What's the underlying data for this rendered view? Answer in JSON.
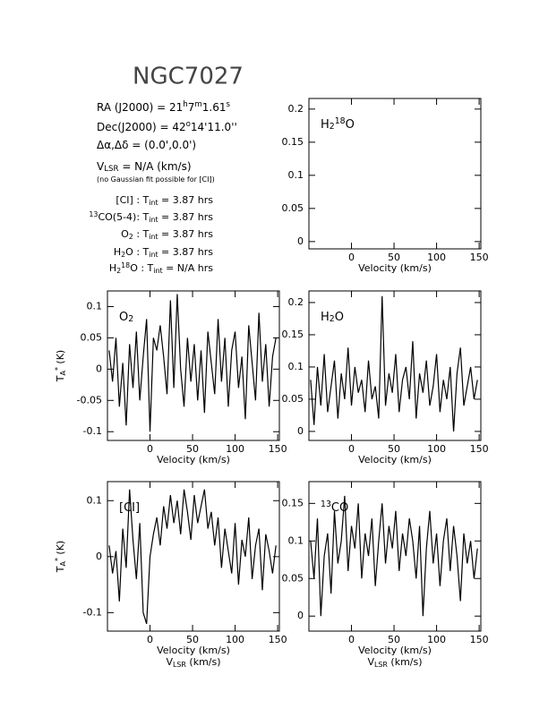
{
  "header": {
    "title": "NGC7027",
    "info": [
      [
        "RA (J2000) = 21",
        {
          "text": "h",
          "pos": "sup"
        },
        "7",
        {
          "text": "m",
          "pos": "sup"
        },
        "1.61",
        {
          "text": "s",
          "pos": "sup"
        }
      ],
      [
        "Dec(J2000) = 42",
        {
          "text": "o",
          "pos": "sup"
        },
        "14'11.0''"
      ],
      [
        "Δα,Δδ = (0.0',0.0')"
      ],
      [
        "V",
        {
          "text": "LSR",
          "pos": "sub"
        },
        " = N/A (km/s)"
      ],
      [
        "(no Gaussian fit possible for [CI])"
      ],
      [
        "[CI] : T",
        {
          "text": "int",
          "pos": "sub"
        },
        " = 3.87 hrs"
      ],
      [
        {
          "text": "13",
          "pos": "sup"
        },
        "CO(5-4): T",
        {
          "text": "int",
          "pos": "sub"
        },
        " = 3.87 hrs"
      ],
      [
        "O",
        {
          "text": "2",
          "pos": "sub"
        },
        " : T",
        {
          "text": "int",
          "pos": "sub"
        },
        " = 3.87 hrs"
      ],
      [
        "H",
        {
          "text": "2",
          "pos": "sub"
        },
        "O : T",
        {
          "text": "int",
          "pos": "sub"
        },
        " = 3.87 hrs"
      ],
      [
        "H",
        {
          "text": "2",
          "pos": "sub"
        },
        {
          "text": "18",
          "pos": "sup"
        },
        "O : T",
        {
          "text": "int",
          "pos": "sub"
        },
        " = N/A hrs"
      ]
    ]
  },
  "chart_data": [
    {
      "type": "line",
      "label": [
        "H",
        {
          "text": "2",
          "pos": "sub"
        },
        {
          "text": "18",
          "pos": "sup"
        },
        "O"
      ],
      "xlabel": [
        [
          "Velocity (km/s)"
        ]
      ],
      "xlim": [
        -50,
        152
      ],
      "ylim": [
        -0.011,
        0.216
      ],
      "xticks": [
        0,
        50,
        100,
        150
      ],
      "yticks": [
        0,
        0.05,
        0.1,
        0.15,
        0.2
      ],
      "color": "#000000"
    },
    {
      "type": "line",
      "label": [
        "O",
        {
          "text": "2",
          "pos": "sub"
        }
      ],
      "xlabel": [
        [
          "Velocity (km/s)"
        ]
      ],
      "ylabel": [
        "T",
        {
          "text": "A",
          "pos": "sub"
        },
        {
          "text": "*",
          "pos": "sup"
        },
        " (K)"
      ],
      "xlim": [
        -50,
        152
      ],
      "ylim": [
        -0.114,
        0.125
      ],
      "xticks": [
        0,
        50,
        100,
        150
      ],
      "yticks": [
        -0.1,
        -0.05,
        0,
        0.05,
        0.1
      ],
      "color": "#000000",
      "x": [
        -48,
        -44,
        -40,
        -36,
        -32,
        -28,
        -24,
        -20,
        -16,
        -12,
        -8,
        -4,
        0,
        4,
        8,
        12,
        16,
        20,
        24,
        28,
        32,
        36,
        40,
        44,
        48,
        52,
        56,
        60,
        64,
        68,
        72,
        76,
        80,
        84,
        88,
        92,
        96,
        100,
        104,
        108,
        112,
        116,
        120,
        124,
        128,
        132,
        136,
        140,
        144,
        148
      ],
      "values": [
        0.03,
        -0.02,
        0.05,
        -0.06,
        0.01,
        -0.09,
        0.04,
        -0.03,
        0.06,
        -0.05,
        0.02,
        0.08,
        -0.1,
        0.05,
        0.03,
        0.07,
        0.02,
        -0.04,
        0.11,
        -0.03,
        0.12,
        0.0,
        -0.06,
        0.05,
        -0.02,
        0.04,
        -0.05,
        0.03,
        -0.07,
        0.06,
        0.01,
        -0.04,
        0.08,
        -0.02,
        0.05,
        -0.06,
        0.03,
        0.06,
        -0.03,
        0.02,
        -0.08,
        0.07,
        0.01,
        -0.05,
        0.09,
        -0.02,
        0.04,
        -0.06,
        0.02,
        0.05
      ]
    },
    {
      "type": "line",
      "label": [
        "H",
        {
          "text": "2",
          "pos": "sub"
        },
        "O"
      ],
      "xlabel": [
        [
          "Velocity (km/s)"
        ]
      ],
      "xlim": [
        -50,
        152
      ],
      "ylim": [
        -0.014,
        0.218
      ],
      "xticks": [
        0,
        50,
        100,
        150
      ],
      "yticks": [
        0,
        0.05,
        0.1,
        0.15,
        0.2
      ],
      "color": "#000000",
      "x": [
        -48,
        -44,
        -40,
        -36,
        -32,
        -28,
        -24,
        -20,
        -16,
        -12,
        -8,
        -4,
        0,
        4,
        8,
        12,
        16,
        20,
        24,
        28,
        32,
        36,
        40,
        44,
        48,
        52,
        56,
        60,
        64,
        68,
        72,
        76,
        80,
        84,
        88,
        92,
        96,
        100,
        104,
        108,
        112,
        116,
        120,
        124,
        128,
        132,
        136,
        140,
        144,
        148
      ],
      "values": [
        0.08,
        0.01,
        0.1,
        0.04,
        0.12,
        0.03,
        0.07,
        0.11,
        0.02,
        0.09,
        0.05,
        0.13,
        0.04,
        0.1,
        0.06,
        0.08,
        0.03,
        0.11,
        0.05,
        0.07,
        0.02,
        0.21,
        0.04,
        0.09,
        0.06,
        0.12,
        0.03,
        0.08,
        0.1,
        0.05,
        0.14,
        0.02,
        0.09,
        0.06,
        0.11,
        0.04,
        0.07,
        0.12,
        0.03,
        0.08,
        0.05,
        0.1,
        0.0,
        0.09,
        0.13,
        0.04,
        0.07,
        0.1,
        0.05,
        0.08
      ]
    },
    {
      "type": "line",
      "label": [
        "[CI]"
      ],
      "xlabel": [
        [
          "Velocity (km/s)"
        ],
        [
          "V",
          {
            "text": "LSR",
            "pos": "sub"
          },
          " (km/s)"
        ]
      ],
      "ylabel": [
        "T",
        {
          "text": "A",
          "pos": "sub"
        },
        {
          "text": "*",
          "pos": "sup"
        },
        " (K)"
      ],
      "xlim": [
        -50,
        152
      ],
      "ylim": [
        -0.133,
        0.134
      ],
      "xticks": [
        0,
        50,
        100,
        150
      ],
      "yticks": [
        -0.1,
        0,
        0.1
      ],
      "color": "#000000",
      "x": [
        -48,
        -44,
        -40,
        -36,
        -32,
        -28,
        -24,
        -20,
        -16,
        -12,
        -8,
        -4,
        0,
        4,
        8,
        12,
        16,
        20,
        24,
        28,
        32,
        36,
        40,
        44,
        48,
        52,
        56,
        60,
        64,
        68,
        72,
        76,
        80,
        84,
        88,
        92,
        96,
        100,
        104,
        108,
        112,
        116,
        120,
        124,
        128,
        132,
        136,
        140,
        144,
        148
      ],
      "values": [
        0.02,
        -0.03,
        0.01,
        -0.08,
        0.05,
        -0.02,
        0.12,
        0.03,
        -0.04,
        0.06,
        -0.1,
        -0.12,
        0.0,
        0.04,
        0.07,
        0.02,
        0.09,
        0.05,
        0.11,
        0.06,
        0.1,
        0.04,
        0.12,
        0.08,
        0.03,
        0.11,
        0.06,
        0.09,
        0.12,
        0.05,
        0.08,
        0.02,
        0.07,
        -0.02,
        0.05,
        0.01,
        -0.03,
        0.06,
        -0.05,
        0.03,
        0.0,
        0.07,
        -0.04,
        0.02,
        0.05,
        -0.06,
        0.04,
        0.01,
        -0.03,
        0.02
      ]
    },
    {
      "type": "line",
      "label": [
        {
          "text": "13",
          "pos": "sup"
        },
        "CO"
      ],
      "xlabel": [
        [
          "Velocity (km/s)"
        ],
        [
          "V",
          {
            "text": "LSR",
            "pos": "sub"
          },
          " (km/s)"
        ]
      ],
      "xlim": [
        -50,
        152
      ],
      "ylim": [
        -0.02,
        0.179
      ],
      "xticks": [
        0,
        50,
        100,
        150
      ],
      "yticks": [
        0,
        0.05,
        0.1,
        0.15
      ],
      "color": "#000000",
      "x": [
        -48,
        -44,
        -40,
        -36,
        -32,
        -28,
        -24,
        -20,
        -16,
        -12,
        -8,
        -4,
        0,
        4,
        8,
        12,
        16,
        20,
        24,
        28,
        32,
        36,
        40,
        44,
        48,
        52,
        56,
        60,
        64,
        68,
        72,
        76,
        80,
        84,
        88,
        92,
        96,
        100,
        104,
        108,
        112,
        116,
        120,
        124,
        128,
        132,
        136,
        140,
        144,
        148
      ],
      "values": [
        0.1,
        0.05,
        0.13,
        0.0,
        0.08,
        0.11,
        0.03,
        0.14,
        0.07,
        0.1,
        0.16,
        0.06,
        0.12,
        0.09,
        0.15,
        0.05,
        0.11,
        0.08,
        0.13,
        0.04,
        0.1,
        0.15,
        0.07,
        0.12,
        0.09,
        0.14,
        0.06,
        0.11,
        0.08,
        0.13,
        0.1,
        0.05,
        0.12,
        0.0,
        0.09,
        0.14,
        0.07,
        0.11,
        0.04,
        0.1,
        0.13,
        0.06,
        0.12,
        0.08,
        0.02,
        0.11,
        0.07,
        0.1,
        0.05,
        0.09
      ]
    }
  ]
}
